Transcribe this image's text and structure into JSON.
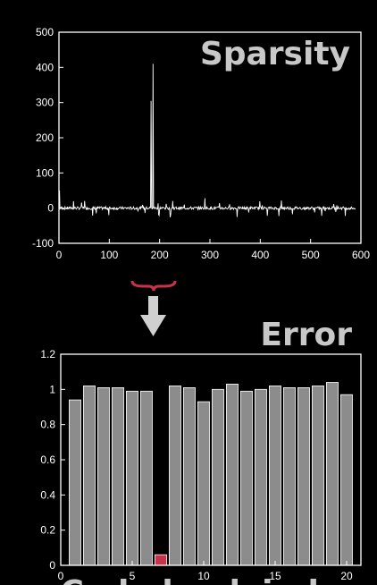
{
  "chart_data": [
    {
      "type": "line",
      "title": "Sparsity",
      "xlim": [
        0,
        600
      ],
      "ylim": [
        -100,
        500
      ],
      "xticks": [
        0,
        100,
        200,
        300,
        400,
        500,
        600
      ],
      "yticks": [
        -100,
        0,
        100,
        200,
        300,
        400,
        500
      ],
      "grid": false,
      "series_color": "#ffffff",
      "notable_values": [
        {
          "x": 1,
          "y": 50
        },
        {
          "x": 183,
          "y": 305
        },
        {
          "x": 187,
          "y": 410
        },
        {
          "x": 290,
          "y": 28
        }
      ]
    },
    {
      "type": "bar",
      "title": "Error",
      "categories": [
        1,
        2,
        3,
        4,
        5,
        6,
        7,
        8,
        9,
        10,
        11,
        12,
        13,
        14,
        15,
        16,
        17,
        18,
        19,
        20
      ],
      "values": [
        0.94,
        1.02,
        1.01,
        1.01,
        0.99,
        0.99,
        0.06,
        1.02,
        1.01,
        0.93,
        1.0,
        1.03,
        0.99,
        1.0,
        1.02,
        1.01,
        1.01,
        1.02,
        1.04,
        0.97
      ],
      "highlight_index": 6,
      "highlight_color": "#c8324a",
      "bar_color": "#8c8c8c",
      "ylim": [
        0,
        1.2
      ],
      "xlim": [
        0,
        21
      ],
      "xticks": [
        0,
        5,
        10,
        15,
        20
      ],
      "yticks": [
        0,
        0.2,
        0.4,
        0.6,
        0.8,
        1,
        1.2
      ],
      "grid": false
    }
  ],
  "bottom_caption": "Code book index"
}
